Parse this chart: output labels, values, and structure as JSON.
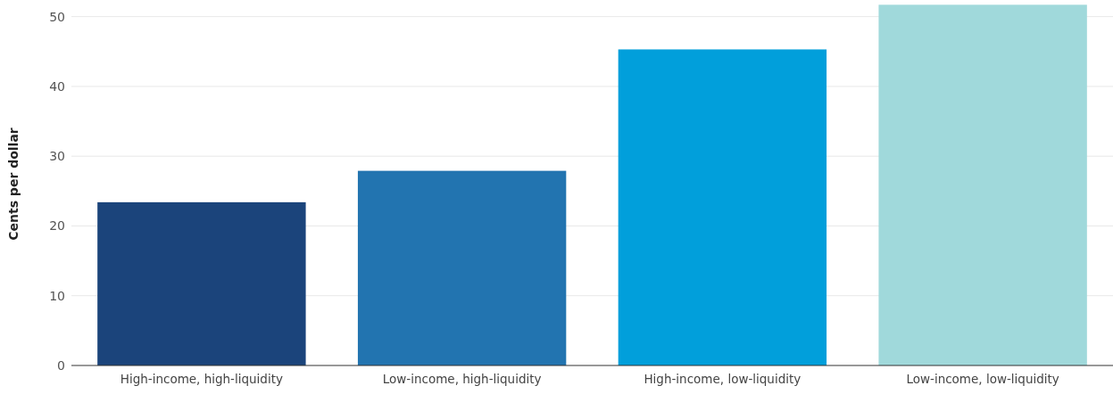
{
  "chart_data": {
    "type": "bar",
    "ylabel": "Cents per dollar",
    "categories": [
      "High-income, high-liquidity",
      "Low-income, high-liquidity",
      "High-income, low-liquidity",
      "Low-income, low-liquidity"
    ],
    "values": [
      23.4,
      27.9,
      45.3,
      51.7
    ],
    "colors": [
      "#1b447b",
      "#2274b0",
      "#019fdb",
      "#a0d9db"
    ],
    "ylim": [
      0,
      52
    ],
    "yticks": [
      0,
      10,
      20,
      30,
      40,
      50
    ],
    "grid": "y"
  }
}
